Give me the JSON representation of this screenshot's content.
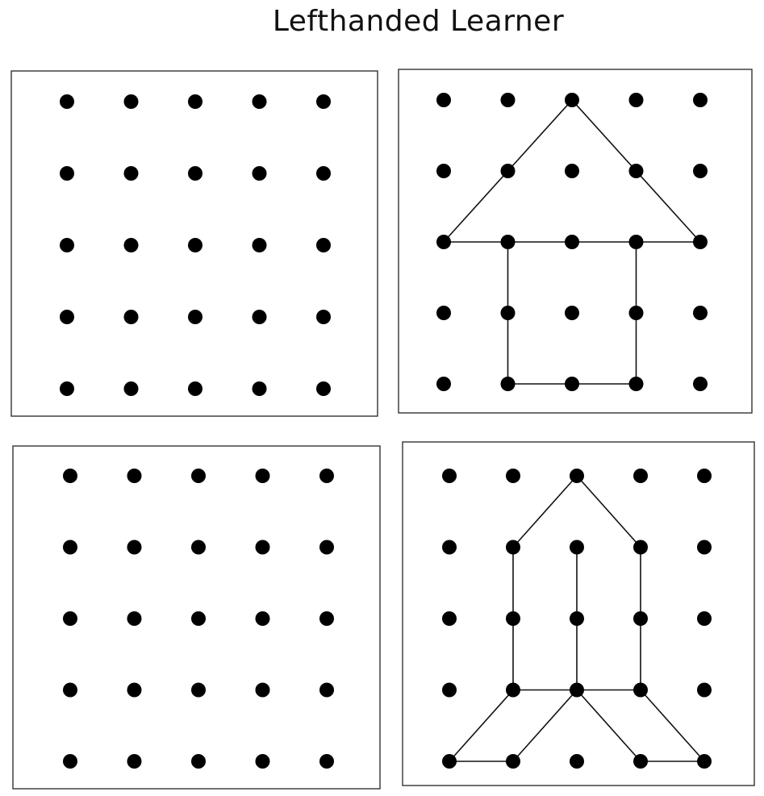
{
  "worksheet": {
    "title": "Lefthanded Learner"
  },
  "panels": [
    {
      "id": "top-left",
      "role": "blank-practice-grid",
      "grid": [
        5,
        5
      ],
      "drawing": []
    },
    {
      "id": "top-right",
      "role": "example-house",
      "grid": [
        5,
        5
      ],
      "drawing": [
        [
          [
            0,
            2
          ],
          [
            2,
            0
          ],
          [
            4,
            2
          ],
          [
            0,
            2
          ]
        ],
        [
          [
            1,
            2
          ],
          [
            1,
            4
          ],
          [
            3,
            4
          ],
          [
            3,
            2
          ]
        ]
      ]
    },
    {
      "id": "bottom-left",
      "role": "blank-practice-grid",
      "grid": [
        5,
        5
      ],
      "drawing": []
    },
    {
      "id": "bottom-right",
      "role": "example-rocket",
      "grid": [
        5,
        5
      ],
      "drawing": [
        [
          [
            0,
            4
          ],
          [
            1,
            4
          ]
        ],
        [
          [
            0,
            4
          ],
          [
            1,
            3
          ],
          [
            1,
            1
          ],
          [
            2,
            0
          ],
          [
            3,
            1
          ],
          [
            3,
            3
          ],
          [
            4,
            4
          ],
          [
            3,
            4
          ]
        ],
        [
          [
            2,
            1
          ],
          [
            2,
            3
          ]
        ],
        [
          [
            1,
            3
          ],
          [
            2,
            3
          ],
          [
            3,
            3
          ]
        ],
        [
          [
            1,
            4
          ],
          [
            2,
            3
          ],
          [
            3,
            4
          ]
        ]
      ]
    }
  ],
  "colors": {
    "ink": "#000000",
    "paper": "#ffffff",
    "border": "#333333"
  }
}
